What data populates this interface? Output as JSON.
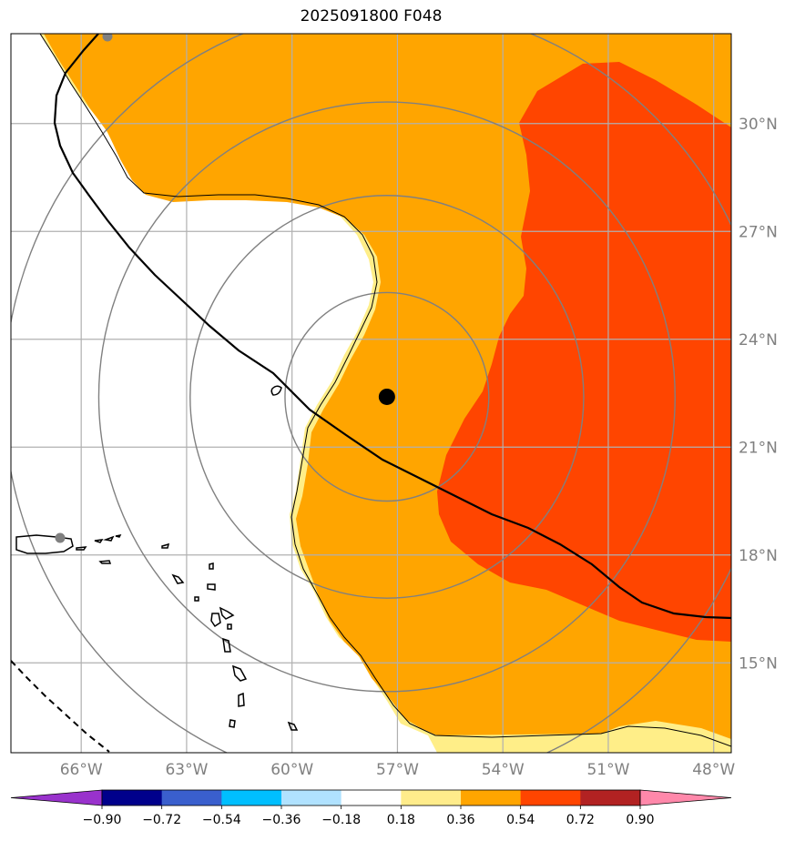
{
  "title": "2025091800 F048",
  "map": {
    "lon_range": [
      -68,
      -47.5
    ],
    "lat_range": [
      12.5,
      32.5
    ],
    "lon_ticks": [
      {
        "lon": -66,
        "label": "66°W"
      },
      {
        "lon": -63,
        "label": "63°W"
      },
      {
        "lon": -60,
        "label": "60°W"
      },
      {
        "lon": -57,
        "label": "57°W"
      },
      {
        "lon": -54,
        "label": "54°W"
      },
      {
        "lon": -51,
        "label": "51°W"
      },
      {
        "lon": -48,
        "label": "48°W"
      }
    ],
    "lat_ticks": [
      {
        "lat": 30,
        "label": "30°N"
      },
      {
        "lat": 27,
        "label": "27°N"
      },
      {
        "lat": 24,
        "label": "24°N"
      },
      {
        "lat": 21,
        "label": "21°N"
      },
      {
        "lat": 18,
        "label": "18°N"
      },
      {
        "lat": 15,
        "label": "15°N"
      }
    ],
    "storm_center": {
      "lon": -57.3,
      "lat": 22.4
    },
    "range_rings_deg": [
      2.9,
      5.6,
      8.2,
      10.9
    ],
    "colors": {
      "orange": "#ffa500",
      "red_orange": "#ff4500",
      "light_yellow": "#ffee88",
      "ring": "#808080",
      "grid": "#b0b0b0"
    }
  },
  "colorbar": {
    "levels": [
      "−0.90",
      "−0.72",
      "−0.54",
      "−0.36",
      "−0.18",
      "0.18",
      "0.36",
      "0.54",
      "0.72",
      "0.90"
    ],
    "colors": [
      "#9932cc",
      "#00008b",
      "#3a5fcd",
      "#00bfff",
      "#b0e2ff",
      "#ffffff",
      "#ffec8b",
      "#ffa500",
      "#ff4500",
      "#b22222",
      "#ff88aa"
    ]
  }
}
